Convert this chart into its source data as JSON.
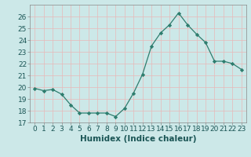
{
  "x": [
    0,
    1,
    2,
    3,
    4,
    5,
    6,
    7,
    8,
    9,
    10,
    11,
    12,
    13,
    14,
    15,
    16,
    17,
    18,
    19,
    20,
    21,
    22,
    23
  ],
  "y": [
    19.9,
    19.7,
    19.8,
    19.4,
    18.5,
    17.8,
    17.8,
    17.8,
    17.8,
    17.5,
    18.2,
    19.5,
    21.1,
    23.5,
    24.6,
    25.3,
    26.3,
    25.3,
    24.5,
    23.8,
    22.2,
    22.2,
    22.0,
    21.5
  ],
  "xlabel": "Humidex (Indice chaleur)",
  "ylim": [
    17,
    27
  ],
  "xlim": [
    -0.5,
    23.5
  ],
  "yticks": [
    17,
    18,
    19,
    20,
    21,
    22,
    23,
    24,
    25,
    26
  ],
  "xticks": [
    0,
    1,
    2,
    3,
    4,
    5,
    6,
    7,
    8,
    9,
    10,
    11,
    12,
    13,
    14,
    15,
    16,
    17,
    18,
    19,
    20,
    21,
    22,
    23
  ],
  "xtick_labels": [
    "0",
    "1",
    "2",
    "3",
    "4",
    "5",
    "6",
    "7",
    "8",
    "9",
    "10",
    "11",
    "12",
    "13",
    "14",
    "15",
    "16",
    "17",
    "18",
    "19",
    "20",
    "21",
    "22",
    "23"
  ],
  "line_color": "#2e7d6e",
  "marker_color": "#2e7d6e",
  "bg_color": "#cce8e8",
  "grid_color": "#e8f4f4",
  "xlabel_fontsize": 7.5,
  "tick_fontsize": 6.5
}
